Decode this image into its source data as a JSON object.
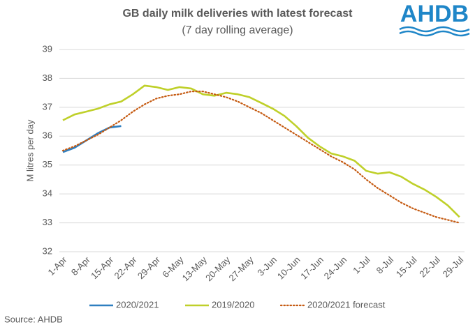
{
  "chart_data": {
    "type": "line",
    "title": "GB daily milk deliveries with latest forecast",
    "subtitle": "(7 day rolling average)",
    "y_label": "M litres per day",
    "source": "Source: AHDB",
    "logo": "AHDB",
    "categories": [
      "1-Apr",
      null,
      "8-Apr",
      null,
      "15-Apr",
      null,
      "22-Apr",
      null,
      "29-Apr",
      null,
      "6-May",
      null,
      "13-May",
      null,
      "20-May",
      null,
      "27-May",
      null,
      "3-Jun",
      null,
      "10-Jun",
      null,
      "17-Jun",
      null,
      "24-Jun",
      null,
      "1-Jul",
      null,
      "8-Jul",
      null,
      "15-Jul",
      null,
      "22-Jul",
      null,
      "29-Jul"
    ],
    "series": [
      {
        "name": "2020/2021",
        "color": "#2e7fc0",
        "dash": false,
        "values": [
          35.45,
          35.6,
          35.85,
          36.1,
          36.3,
          36.35,
          null,
          null,
          null,
          null,
          null,
          null,
          null,
          null,
          null,
          null,
          null,
          null,
          null,
          null,
          null,
          null,
          null,
          null,
          null,
          null,
          null,
          null,
          null,
          null,
          null,
          null,
          null,
          null,
          null
        ]
      },
      {
        "name": "2019/2020",
        "color": "#bfd02a",
        "dash": false,
        "values": [
          36.55,
          36.75,
          36.85,
          36.95,
          37.1,
          37.2,
          37.45,
          37.75,
          37.7,
          37.6,
          37.7,
          37.65,
          37.45,
          37.4,
          37.5,
          37.45,
          37.35,
          37.15,
          36.95,
          36.7,
          36.35,
          35.95,
          35.65,
          35.4,
          35.3,
          35.15,
          34.8,
          34.7,
          34.75,
          34.6,
          34.35,
          34.15,
          33.9,
          33.6,
          33.2
        ]
      },
      {
        "name": "2020/2021 forecast",
        "color": "#c55a11",
        "dash": true,
        "values": [
          35.5,
          35.65,
          35.85,
          36.05,
          36.3,
          36.55,
          36.85,
          37.1,
          37.3,
          37.4,
          37.45,
          37.55,
          37.55,
          37.45,
          37.35,
          37.2,
          37.0,
          36.8,
          36.55,
          36.3,
          36.05,
          35.8,
          35.55,
          35.3,
          35.1,
          34.85,
          34.5,
          34.2,
          33.95,
          33.7,
          33.5,
          33.35,
          33.2,
          33.1,
          33.0
        ]
      }
    ],
    "ylim": [
      32,
      39
    ],
    "yticks": [
      32,
      33,
      34,
      35,
      36,
      37,
      38,
      39
    ],
    "grid": true,
    "legend": "bottom"
  }
}
